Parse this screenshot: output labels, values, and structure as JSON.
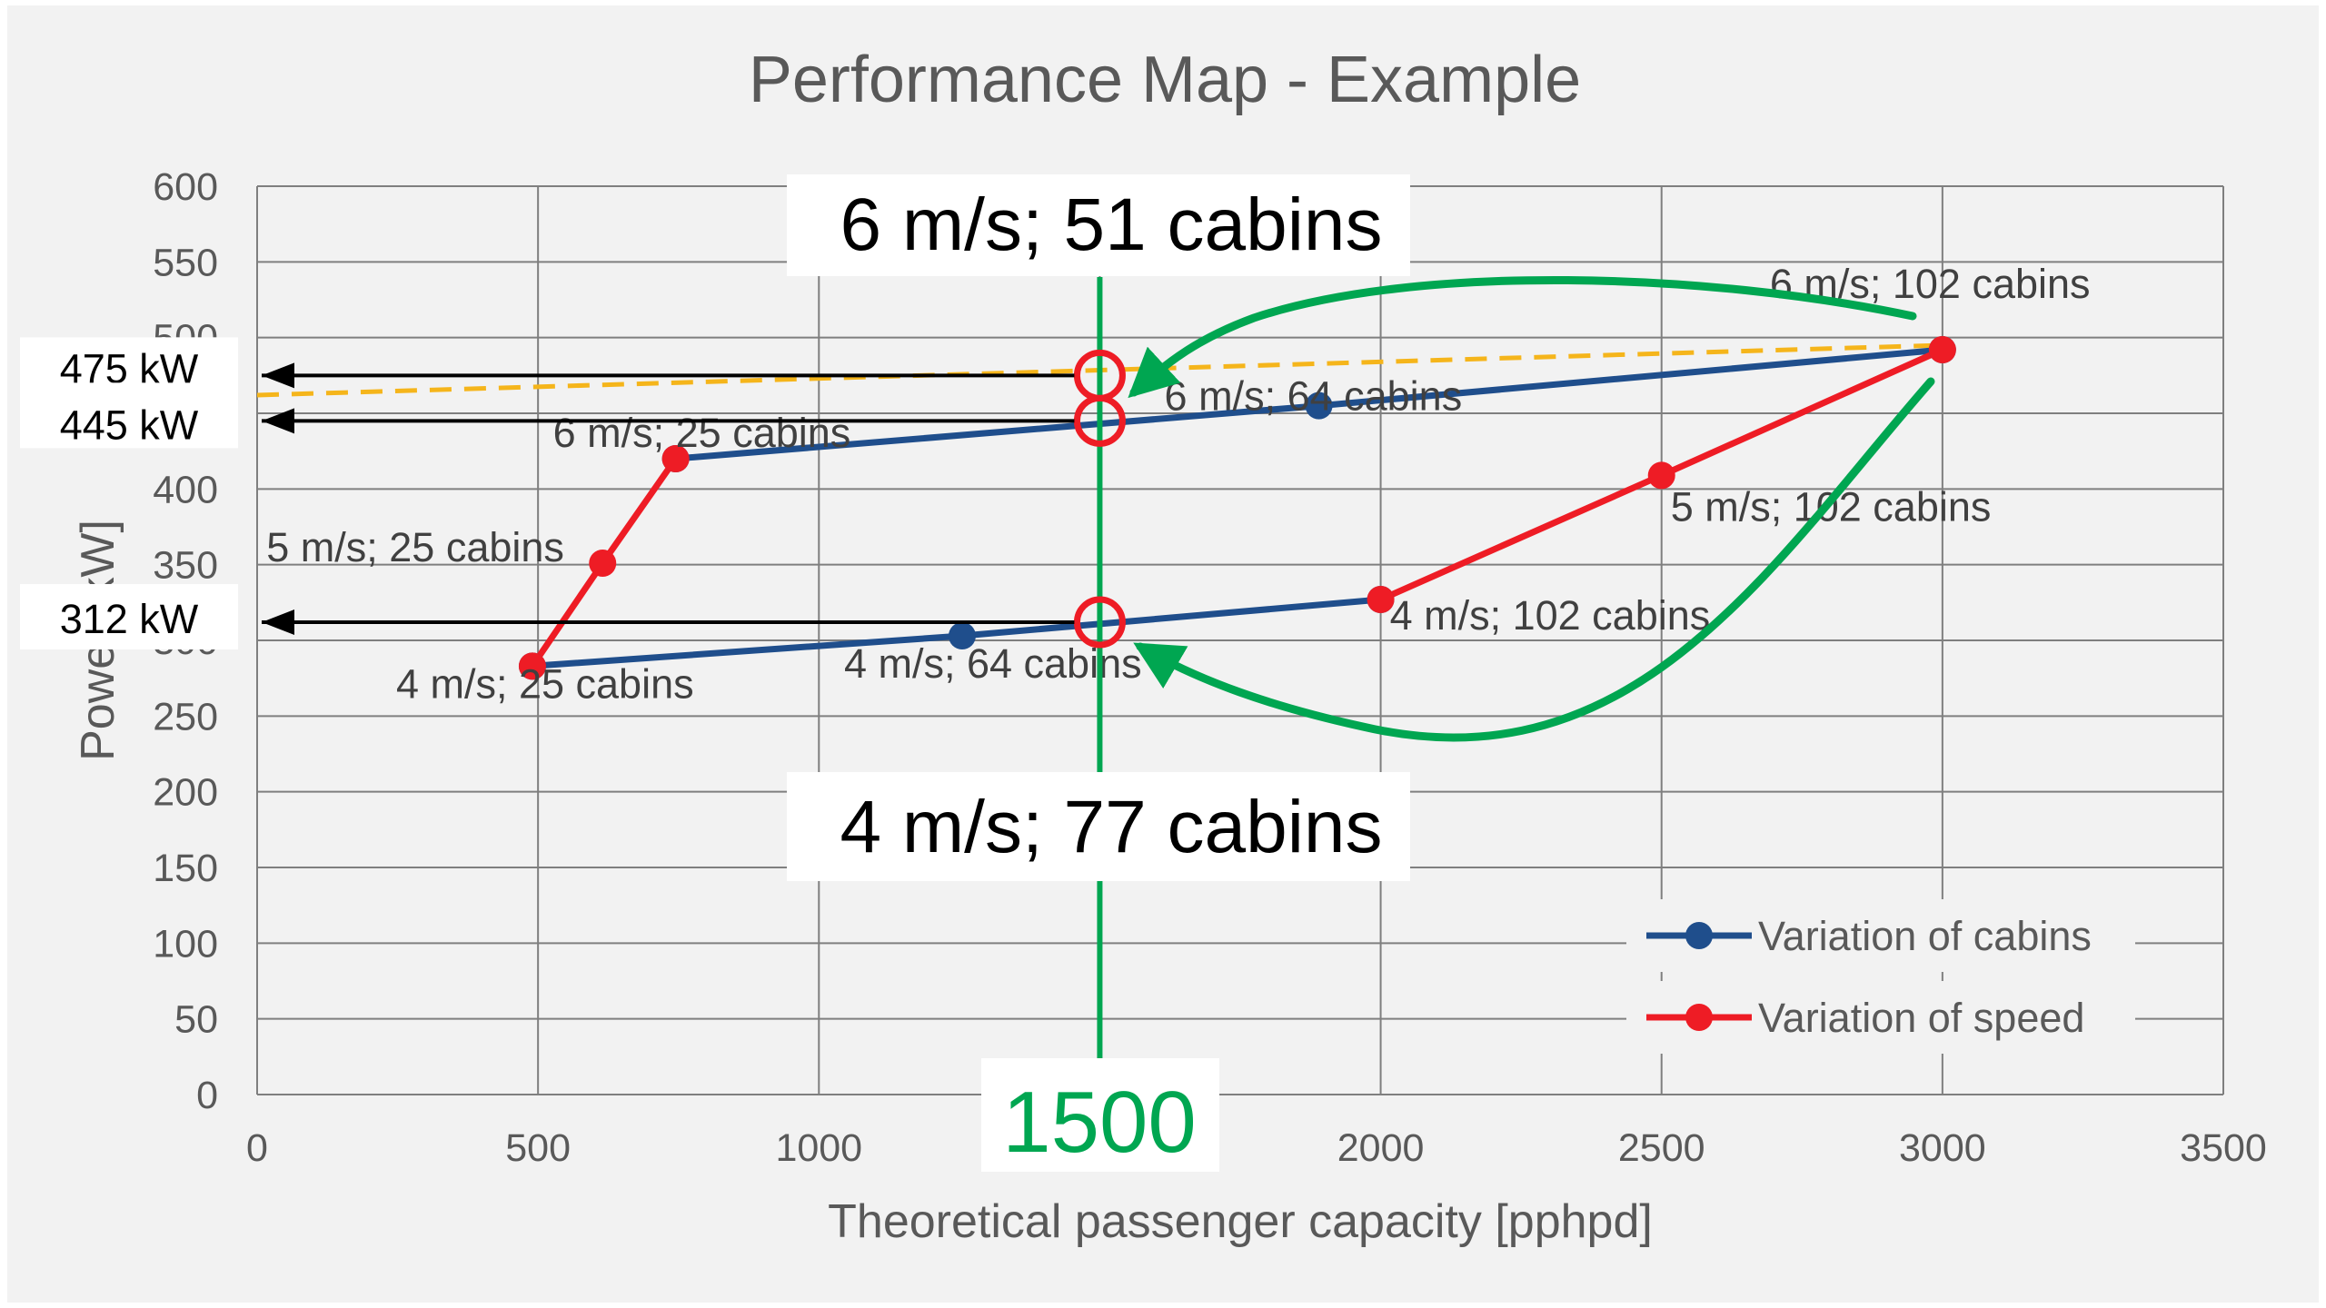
{
  "chart_data": {
    "type": "line",
    "title": "Performance Map - Example",
    "xlabel": "Theoretical passenger capacity [pphpd]",
    "ylabel": "Power [kW]",
    "xlim": [
      0,
      3500
    ],
    "ylim": [
      0,
      600
    ],
    "x_ticks": [
      0,
      500,
      1000,
      1500,
      2000,
      2500,
      3000,
      3500
    ],
    "y_ticks": [
      0,
      50,
      100,
      150,
      200,
      250,
      300,
      350,
      400,
      450,
      500,
      550,
      600
    ],
    "grid": true,
    "legend_position": "bottom-right",
    "series": [
      {
        "name": "Variation of cabins",
        "color": "#1f4e8c",
        "segments": [
          {
            "points": [
              [
                745,
                420
              ],
              [
                1890,
                455
              ],
              [
                3000,
                492
              ]
            ]
          },
          {
            "points": [
              [
                490,
                283
              ],
              [
                1255,
                303
              ],
              [
                2000,
                327
              ]
            ]
          }
        ]
      },
      {
        "name": "Variation of speed",
        "color": "#ee1c25",
        "segments": [
          {
            "points": [
              [
                490,
                283
              ],
              [
                615,
                351
              ],
              [
                745,
                420
              ]
            ]
          },
          {
            "points": [
              [
                2000,
                327
              ],
              [
                2500,
                409
              ],
              [
                3000,
                492
              ]
            ]
          }
        ]
      }
    ],
    "point_labels": [
      {
        "text": "6 m/s; 102 cabins",
        "x": 3000,
        "y": 492
      },
      {
        "text": "6 m/s; 64 cabins",
        "x": 1890,
        "y": 455
      },
      {
        "text": "6 m/s; 25 cabins",
        "x": 745,
        "y": 420
      },
      {
        "text": "5 m/s; 25 cabins",
        "x": 615,
        "y": 351
      },
      {
        "text": "4 m/s; 25 cabins",
        "x": 490,
        "y": 283
      },
      {
        "text": "4 m/s; 64 cabins",
        "x": 1255,
        "y": 303
      },
      {
        "text": "4 m/s; 102 cabins",
        "x": 2000,
        "y": 327
      },
      {
        "text": "5 m/s; 102 cabins",
        "x": 2500,
        "y": 409
      }
    ],
    "reference_line": {
      "x": 1500,
      "label": "1500",
      "color": "#00a651"
    },
    "dashed_line": {
      "points": [
        [
          0,
          462
        ],
        [
          3000,
          495
        ]
      ],
      "color": "#f5b51b"
    },
    "intersections": [
      {
        "x": 1500,
        "y": 475,
        "label": "475 kW"
      },
      {
        "x": 1500,
        "y": 445,
        "label": "445 kW"
      },
      {
        "x": 1500,
        "y": 312,
        "label": "312 kW"
      }
    ],
    "callouts": {
      "top": "6 m/s; 51 cabins",
      "bottom": "4 m/s; 77 cabins"
    }
  }
}
